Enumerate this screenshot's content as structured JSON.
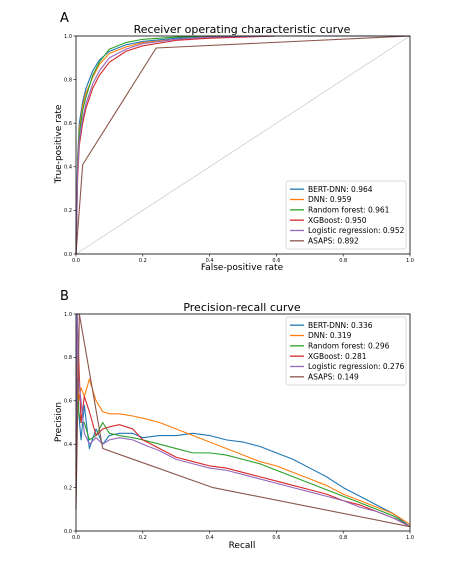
{
  "colors": {
    "BERT-DNN": "#1f77b4",
    "DNN": "#ff7f0e",
    "Random forest": "#2ca02c",
    "XGBoost": "#d62728",
    "Logistic regression": "#9467bd",
    "ASAPS": "#8c564b",
    "diagonal": "#c8c8c8"
  },
  "chart_data": [
    {
      "panel": "A",
      "type": "line",
      "title": "Receiver operating characteristic curve",
      "xlabel": "False-positive rate",
      "ylabel": "True-positive rate",
      "xlim": [
        0,
        1
      ],
      "ylim": [
        0,
        1
      ],
      "xticks": [
        "0.0",
        "0.2",
        "0.4",
        "0.6",
        "0.8",
        "1.0"
      ],
      "yticks": [
        "0.0",
        "0.2",
        "0.4",
        "0.6",
        "0.8",
        "1.0"
      ],
      "grid": false,
      "legend_position": "lower-right",
      "diagonal": true,
      "series": [
        {
          "name": "BERT-DNN",
          "label": "BERT-DNN: 0.964",
          "x": [
            0,
            0.005,
            0.01,
            0.02,
            0.03,
            0.05,
            0.07,
            0.1,
            0.15,
            0.2,
            0.3,
            0.4,
            0.6,
            0.8,
            1.0
          ],
          "y": [
            0,
            0.45,
            0.6,
            0.7,
            0.76,
            0.84,
            0.89,
            0.93,
            0.96,
            0.975,
            0.99,
            0.995,
            1.0,
            1.0,
            1.0
          ]
        },
        {
          "name": "DNN",
          "label": "DNN: 0.959",
          "x": [
            0,
            0.005,
            0.01,
            0.02,
            0.03,
            0.05,
            0.07,
            0.1,
            0.15,
            0.2,
            0.3,
            0.4,
            0.6,
            0.8,
            1.0
          ],
          "y": [
            0,
            0.42,
            0.57,
            0.68,
            0.74,
            0.81,
            0.87,
            0.92,
            0.95,
            0.97,
            0.985,
            0.995,
            1.0,
            1.0,
            1.0
          ]
        },
        {
          "name": "Random forest",
          "label": "Random forest: 0.961",
          "x": [
            0,
            0.005,
            0.01,
            0.02,
            0.03,
            0.05,
            0.07,
            0.1,
            0.15,
            0.2,
            0.3,
            0.4,
            0.6,
            0.8,
            1.0
          ],
          "y": [
            0,
            0.4,
            0.55,
            0.66,
            0.72,
            0.82,
            0.88,
            0.94,
            0.97,
            0.985,
            0.995,
            1.0,
            1.0,
            1.0,
            1.0
          ]
        },
        {
          "name": "XGBoost",
          "label": "XGBoost: 0.950",
          "x": [
            0,
            0.005,
            0.01,
            0.02,
            0.03,
            0.05,
            0.07,
            0.1,
            0.15,
            0.2,
            0.3,
            0.4,
            0.6,
            0.8,
            1.0
          ],
          "y": [
            0,
            0.35,
            0.5,
            0.6,
            0.67,
            0.76,
            0.82,
            0.88,
            0.93,
            0.955,
            0.98,
            0.99,
            1.0,
            1.0,
            1.0
          ]
        },
        {
          "name": "Logistic regression",
          "label": "Logistic regression: 0.952",
          "x": [
            0,
            0.005,
            0.01,
            0.02,
            0.03,
            0.05,
            0.07,
            0.1,
            0.15,
            0.2,
            0.3,
            0.4,
            0.6,
            0.8,
            1.0
          ],
          "y": [
            0,
            0.38,
            0.52,
            0.62,
            0.69,
            0.78,
            0.84,
            0.9,
            0.94,
            0.965,
            0.985,
            0.995,
            1.0,
            1.0,
            1.0
          ]
        },
        {
          "name": "ASAPS",
          "label": "ASAPS: 0.892",
          "x": [
            0,
            0.02,
            0.24,
            1.0
          ],
          "y": [
            0,
            0.41,
            0.945,
            1.0
          ]
        }
      ]
    },
    {
      "panel": "B",
      "type": "line",
      "title": "Precision-recall curve",
      "xlabel": "Recall",
      "ylabel": "Precision",
      "xlim": [
        0,
        1
      ],
      "ylim": [
        0,
        1
      ],
      "xticks": [
        "0.0",
        "0.2",
        "0.4",
        "0.6",
        "0.8",
        "1.0"
      ],
      "yticks": [
        "0.0",
        "0.2",
        "0.4",
        "0.6",
        "0.8",
        "1.0"
      ],
      "grid": false,
      "legend_position": "upper-right",
      "series": [
        {
          "name": "BERT-DNN",
          "label": "BERT-DNN: 0.336",
          "x": [
            0,
            0.004,
            0.008,
            0.015,
            0.025,
            0.04,
            0.06,
            0.08,
            0.1,
            0.13,
            0.17,
            0.2,
            0.25,
            0.3,
            0.35,
            0.4,
            0.45,
            0.5,
            0.55,
            0.6,
            0.65,
            0.7,
            0.75,
            0.8,
            0.85,
            0.9,
            0.95,
            1.0
          ],
          "y": [
            0.2,
            1.0,
            0.55,
            0.42,
            0.58,
            0.38,
            0.47,
            0.4,
            0.44,
            0.45,
            0.45,
            0.43,
            0.44,
            0.44,
            0.45,
            0.44,
            0.42,
            0.41,
            0.39,
            0.36,
            0.33,
            0.29,
            0.25,
            0.2,
            0.16,
            0.12,
            0.08,
            0.02
          ]
        },
        {
          "name": "DNN",
          "label": "DNN: 0.319",
          "x": [
            0,
            0.004,
            0.008,
            0.015,
            0.025,
            0.04,
            0.06,
            0.08,
            0.1,
            0.13,
            0.17,
            0.2,
            0.25,
            0.3,
            0.35,
            0.4,
            0.45,
            0.5,
            0.55,
            0.6,
            0.65,
            0.7,
            0.75,
            0.8,
            0.85,
            0.9,
            0.95,
            1.0
          ],
          "y": [
            0.3,
            0.85,
            0.6,
            0.66,
            0.62,
            0.7,
            0.6,
            0.55,
            0.54,
            0.54,
            0.53,
            0.52,
            0.5,
            0.47,
            0.44,
            0.41,
            0.38,
            0.35,
            0.32,
            0.3,
            0.27,
            0.24,
            0.21,
            0.17,
            0.14,
            0.11,
            0.08,
            0.03
          ]
        },
        {
          "name": "Random forest",
          "label": "Random forest: 0.296",
          "x": [
            0,
            0.004,
            0.008,
            0.015,
            0.025,
            0.04,
            0.06,
            0.08,
            0.1,
            0.13,
            0.17,
            0.2,
            0.25,
            0.3,
            0.35,
            0.4,
            0.45,
            0.5,
            0.55,
            0.6,
            0.65,
            0.7,
            0.75,
            0.8,
            0.85,
            0.9,
            0.95,
            1.0
          ],
          "y": [
            0.3,
            0.7,
            0.55,
            0.5,
            0.5,
            0.42,
            0.44,
            0.5,
            0.45,
            0.44,
            0.43,
            0.42,
            0.4,
            0.38,
            0.36,
            0.36,
            0.35,
            0.33,
            0.31,
            0.28,
            0.25,
            0.22,
            0.19,
            0.16,
            0.13,
            0.1,
            0.07,
            0.02
          ]
        },
        {
          "name": "XGBoost",
          "label": "XGBoost: 0.281",
          "x": [
            0,
            0.004,
            0.008,
            0.015,
            0.025,
            0.04,
            0.06,
            0.08,
            0.1,
            0.13,
            0.17,
            0.2,
            0.25,
            0.3,
            0.35,
            0.4,
            0.45,
            0.5,
            0.55,
            0.6,
            0.65,
            0.7,
            0.75,
            0.8,
            0.85,
            0.9,
            0.95,
            1.0
          ],
          "y": [
            0.25,
            0.95,
            0.8,
            0.5,
            0.62,
            0.55,
            0.44,
            0.47,
            0.48,
            0.49,
            0.47,
            0.42,
            0.38,
            0.34,
            0.32,
            0.3,
            0.29,
            0.27,
            0.25,
            0.23,
            0.21,
            0.19,
            0.17,
            0.14,
            0.12,
            0.09,
            0.06,
            0.02
          ]
        },
        {
          "name": "Logistic regression",
          "label": "Logistic regression: 0.276",
          "x": [
            0,
            0.004,
            0.008,
            0.015,
            0.025,
            0.04,
            0.06,
            0.08,
            0.1,
            0.13,
            0.17,
            0.2,
            0.25,
            0.3,
            0.35,
            0.4,
            0.45,
            0.5,
            0.55,
            0.6,
            0.65,
            0.7,
            0.75,
            0.8,
            0.85,
            0.9,
            0.95,
            1.0
          ],
          "y": [
            0.3,
            1.0,
            0.7,
            0.6,
            0.45,
            0.4,
            0.43,
            0.4,
            0.42,
            0.43,
            0.42,
            0.4,
            0.37,
            0.33,
            0.31,
            0.29,
            0.28,
            0.26,
            0.24,
            0.22,
            0.2,
            0.18,
            0.16,
            0.14,
            0.11,
            0.09,
            0.06,
            0.02
          ]
        },
        {
          "name": "ASAPS",
          "label": "ASAPS: 0.149",
          "x": [
            0,
            0.01,
            0.08,
            0.41,
            1.0
          ],
          "y": [
            0.1,
            1.0,
            0.38,
            0.2,
            0.02
          ]
        }
      ]
    }
  ],
  "panels": [
    {
      "letter": "A"
    },
    {
      "letter": "B"
    }
  ]
}
